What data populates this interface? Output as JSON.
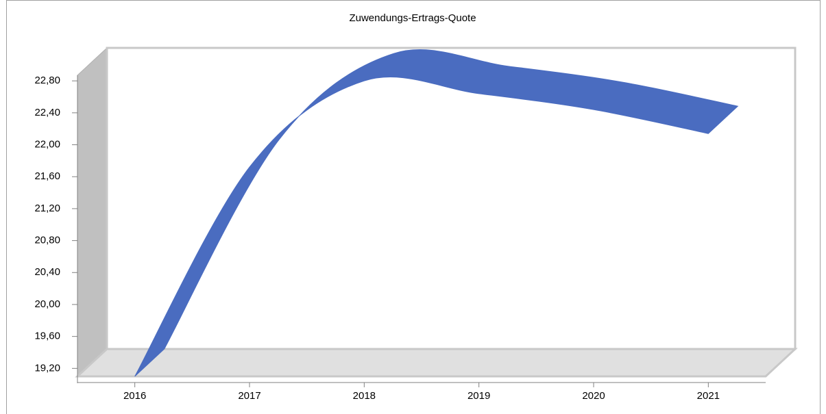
{
  "chart_data": {
    "type": "line",
    "title": "Zuwendungs-Ertrags-Quote",
    "categories": [
      "2016",
      "2017",
      "2018",
      "2019",
      "2020",
      "2021"
    ],
    "series": [
      {
        "name": null,
        "color": "#4a6cc0",
        "values": [
          19.1,
          21.72,
          22.8,
          22.64,
          22.44,
          22.14
        ]
      }
    ],
    "ylim": [
      19.1,
      22.87
    ],
    "yticks": [
      {
        "value": 19.2,
        "label": "19,20"
      },
      {
        "value": 19.6,
        "label": "19,60"
      },
      {
        "value": 20.0,
        "label": "20,00"
      },
      {
        "value": 20.4,
        "label": "20,40"
      },
      {
        "value": 20.8,
        "label": "20,80"
      },
      {
        "value": 21.2,
        "label": "21,20"
      },
      {
        "value": 21.6,
        "label": "21,60"
      },
      {
        "value": 22.0,
        "label": "22,00"
      },
      {
        "value": 22.4,
        "label": "22,40"
      },
      {
        "value": 22.8,
        "label": "22,80"
      }
    ]
  }
}
